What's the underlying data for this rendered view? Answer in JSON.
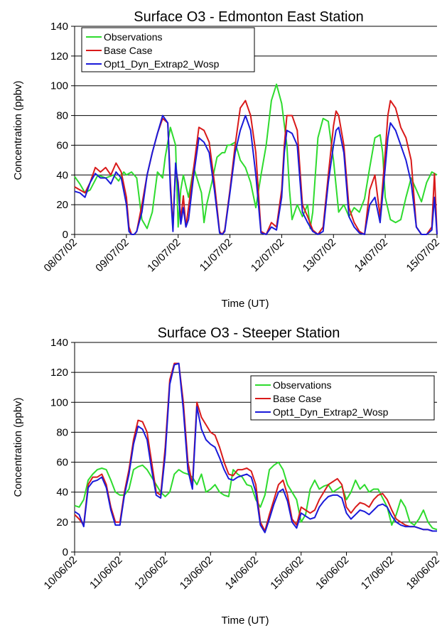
{
  "chart_data": [
    {
      "type": "line",
      "title": "Surface O3 - Edmonton East Station",
      "xlabel": "Time (UT)",
      "ylabel": "Concentration (ppbv)",
      "ylim": [
        0,
        140
      ],
      "yticks": [
        "0",
        "20",
        "40",
        "60",
        "80",
        "100",
        "120",
        "140"
      ],
      "xticks": [
        "08/07/02",
        "09/07/02",
        "10/07/02",
        "11/07/02",
        "12/07/02",
        "13/07/02",
        "14/07/02",
        "15/07/02"
      ],
      "xlim_days": [
        0,
        7
      ],
      "grid": "horizontal",
      "legend_position": "top-left",
      "colors": {
        "Observations": "#2edb2e",
        "Base Case": "#d91a1a",
        "Opt1_Dyn_Extrap2_Wosp": "#1a1ad9"
      },
      "series": [
        {
          "name": "Observations",
          "x": [
            0,
            0.1,
            0.2,
            0.3,
            0.45,
            0.6,
            0.75,
            0.85,
            0.95,
            1.0,
            1.1,
            1.2,
            1.3,
            1.4,
            1.5,
            1.6,
            1.7,
            1.75,
            1.85,
            1.95,
            2.0,
            2.05,
            2.1,
            2.2,
            2.3,
            2.45,
            2.5,
            2.55,
            2.65,
            2.75,
            2.85,
            2.9,
            2.95,
            3.0,
            3.1,
            3.2,
            3.3,
            3.4,
            3.5,
            3.6,
            3.7,
            3.8,
            3.9,
            4.0,
            4.1,
            4.15,
            4.2,
            4.3,
            4.4,
            4.5,
            4.55,
            4.6,
            4.7,
            4.8,
            4.9,
            5.0,
            5.1,
            5.2,
            5.3,
            5.4,
            5.5,
            5.6,
            5.7,
            5.8,
            5.9,
            5.95,
            6.0,
            6.1,
            6.2,
            6.3,
            6.4,
            6.5,
            6.6,
            6.7,
            6.8,
            6.9,
            7.0
          ],
          "values": [
            39,
            34,
            28,
            30,
            40,
            38,
            40,
            36,
            42,
            40,
            42,
            38,
            10,
            4,
            15,
            42,
            38,
            52,
            72,
            60,
            5,
            30,
            40,
            25,
            45,
            28,
            8,
            20,
            35,
            52,
            55,
            55,
            60,
            60,
            62,
            50,
            45,
            35,
            18,
            40,
            60,
            90,
            101,
            88,
            60,
            30,
            10,
            20,
            12,
            20,
            4,
            15,
            65,
            78,
            76,
            50,
            15,
            20,
            12,
            18,
            15,
            24,
            45,
            65,
            67,
            55,
            25,
            10,
            8,
            10,
            25,
            38,
            30,
            22,
            35,
            42,
            40
          ]
        },
        {
          "name": "Base Case",
          "x": [
            0,
            0.1,
            0.2,
            0.3,
            0.4,
            0.5,
            0.6,
            0.7,
            0.8,
            0.9,
            1.0,
            1.05,
            1.1,
            1.15,
            1.2,
            1.3,
            1.4,
            1.5,
            1.6,
            1.7,
            1.8,
            1.85,
            1.9,
            1.95,
            2.0,
            2.05,
            2.1,
            2.15,
            2.2,
            2.3,
            2.4,
            2.5,
            2.6,
            2.7,
            2.8,
            2.85,
            2.9,
            3.0,
            3.1,
            3.2,
            3.3,
            3.4,
            3.5,
            3.6,
            3.7,
            3.8,
            3.9,
            4.0,
            4.05,
            4.1,
            4.2,
            4.3,
            4.4,
            4.5,
            4.6,
            4.7,
            4.8,
            4.9,
            5.0,
            5.05,
            5.1,
            5.2,
            5.3,
            5.4,
            5.5,
            5.6,
            5.7,
            5.8,
            5.9,
            6.0,
            6.05,
            6.1,
            6.2,
            6.3,
            6.4,
            6.5,
            6.6,
            6.7,
            6.8,
            6.9,
            6.95,
            7.0
          ],
          "values": [
            32,
            30,
            28,
            35,
            45,
            42,
            45,
            40,
            48,
            42,
            25,
            5,
            0,
            0,
            2,
            20,
            40,
            55,
            68,
            78,
            75,
            35,
            5,
            45,
            35,
            10,
            26,
            5,
            18,
            45,
            72,
            70,
            62,
            35,
            2,
            0,
            3,
            30,
            60,
            85,
            90,
            80,
            55,
            2,
            0,
            8,
            5,
            30,
            60,
            80,
            80,
            70,
            20,
            12,
            3,
            0,
            5,
            40,
            73,
            83,
            80,
            60,
            18,
            8,
            2,
            0,
            30,
            40,
            12,
            55,
            80,
            90,
            85,
            72,
            65,
            50,
            5,
            0,
            0,
            5,
            41,
            0
          ]
        },
        {
          "name": "Opt1_Dyn_Extrap2_Wosp",
          "x": [
            0,
            0.1,
            0.2,
            0.3,
            0.4,
            0.5,
            0.6,
            0.7,
            0.8,
            0.9,
            1.0,
            1.05,
            1.1,
            1.15,
            1.2,
            1.3,
            1.4,
            1.5,
            1.6,
            1.7,
            1.8,
            1.85,
            1.9,
            1.95,
            2.0,
            2.05,
            2.1,
            2.15,
            2.2,
            2.3,
            2.4,
            2.5,
            2.6,
            2.7,
            2.8,
            2.85,
            2.9,
            3.0,
            3.1,
            3.2,
            3.3,
            3.4,
            3.5,
            3.6,
            3.7,
            3.8,
            3.9,
            4.0,
            4.05,
            4.1,
            4.2,
            4.3,
            4.4,
            4.5,
            4.6,
            4.7,
            4.8,
            4.9,
            5.0,
            5.05,
            5.1,
            5.2,
            5.3,
            5.4,
            5.5,
            5.6,
            5.7,
            5.8,
            5.9,
            6.0,
            6.05,
            6.1,
            6.2,
            6.3,
            6.4,
            6.5,
            6.6,
            6.7,
            6.8,
            6.9,
            6.95,
            7.0
          ],
          "values": [
            29,
            28,
            25,
            35,
            41,
            38,
            38,
            34,
            42,
            38,
            20,
            2,
            0,
            0,
            2,
            15,
            40,
            55,
            68,
            80,
            75,
            30,
            2,
            48,
            32,
            7,
            18,
            5,
            10,
            40,
            65,
            62,
            55,
            30,
            1,
            0,
            2,
            28,
            55,
            70,
            80,
            70,
            40,
            1,
            0,
            5,
            3,
            25,
            55,
            70,
            68,
            60,
            15,
            8,
            2,
            0,
            2,
            35,
            60,
            70,
            72,
            55,
            12,
            5,
            1,
            0,
            20,
            25,
            8,
            45,
            65,
            75,
            70,
            60,
            50,
            35,
            5,
            0,
            0,
            3,
            25,
            0
          ]
        }
      ]
    },
    {
      "type": "line",
      "title": "Surface O3 - Steeper Station",
      "xlabel": "Time (UT)",
      "ylabel": "Concentration (ppbv)",
      "ylim": [
        0,
        140
      ],
      "yticks": [
        "0",
        "20",
        "40",
        "60",
        "80",
        "100",
        "120",
        "140"
      ],
      "xticks": [
        "10/06/02",
        "11/06/02",
        "12/06/02",
        "13/06/02",
        "14/06/02",
        "15/06/02",
        "16/06/02",
        "17/06/02",
        "18/06/02"
      ],
      "xlim_days": [
        0,
        8
      ],
      "grid": "horizontal",
      "legend_position": "top-right",
      "colors": {
        "Observations": "#2edb2e",
        "Base Case": "#d91a1a",
        "Opt1_Dyn_Extrap2_Wosp": "#1a1ad9"
      },
      "series": [
        {
          "name": "Observations",
          "x": [
            0,
            0.1,
            0.2,
            0.3,
            0.4,
            0.5,
            0.6,
            0.7,
            0.8,
            0.9,
            1.0,
            1.1,
            1.2,
            1.3,
            1.4,
            1.5,
            1.6,
            1.7,
            1.8,
            1.9,
            2.0,
            2.1,
            2.2,
            2.3,
            2.4,
            2.5,
            2.6,
            2.7,
            2.8,
            2.9,
            3.0,
            3.1,
            3.2,
            3.3,
            3.4,
            3.5,
            3.6,
            3.7,
            3.8,
            3.9,
            4.0,
            4.1,
            4.2,
            4.3,
            4.4,
            4.5,
            4.6,
            4.7,
            4.8,
            4.9,
            5.0,
            5.1,
            5.2,
            5.3,
            5.4,
            5.5,
            5.6,
            5.7,
            5.8,
            5.9,
            6.0,
            6.1,
            6.2,
            6.3,
            6.4,
            6.5,
            6.6,
            6.7,
            6.8,
            6.9,
            7.0,
            7.1,
            7.2,
            7.3,
            7.4,
            7.5,
            7.6,
            7.7,
            7.8,
            7.9,
            8.0
          ],
          "values": [
            31,
            30,
            35,
            48,
            52,
            55,
            56,
            55,
            48,
            40,
            38,
            38,
            42,
            55,
            57,
            58,
            55,
            50,
            45,
            40,
            37,
            40,
            52,
            55,
            53,
            52,
            50,
            45,
            52,
            40,
            42,
            45,
            40,
            38,
            37,
            55,
            52,
            50,
            45,
            44,
            35,
            30,
            38,
            55,
            58,
            60,
            55,
            45,
            40,
            35,
            20,
            25,
            42,
            48,
            42,
            44,
            45,
            40,
            42,
            44,
            35,
            40,
            48,
            42,
            45,
            40,
            42,
            42,
            36,
            30,
            18,
            25,
            35,
            30,
            20,
            18,
            22,
            28,
            20,
            16,
            15
          ]
        },
        {
          "name": "Base Case",
          "x": [
            0,
            0.1,
            0.2,
            0.3,
            0.4,
            0.5,
            0.6,
            0.7,
            0.8,
            0.9,
            1.0,
            1.1,
            1.2,
            1.3,
            1.4,
            1.5,
            1.6,
            1.7,
            1.8,
            1.9,
            2.0,
            2.1,
            2.2,
            2.3,
            2.4,
            2.5,
            2.6,
            2.7,
            2.8,
            2.9,
            3.0,
            3.1,
            3.2,
            3.3,
            3.4,
            3.5,
            3.6,
            3.7,
            3.8,
            3.9,
            4.0,
            4.1,
            4.2,
            4.3,
            4.4,
            4.5,
            4.6,
            4.7,
            4.8,
            4.9,
            5.0,
            5.1,
            5.2,
            5.3,
            5.4,
            5.5,
            5.6,
            5.7,
            5.8,
            5.9,
            6.0,
            6.1,
            6.2,
            6.3,
            6.4,
            6.5,
            6.6,
            6.7,
            6.8,
            6.9,
            7.0,
            7.1,
            7.2,
            7.3,
            7.4,
            7.5,
            7.6,
            7.7,
            7.8,
            7.9,
            8.0
          ],
          "values": [
            25,
            22,
            18,
            45,
            50,
            50,
            52,
            45,
            30,
            20,
            20,
            40,
            55,
            75,
            88,
            87,
            80,
            60,
            40,
            38,
            70,
            115,
            126,
            126,
            100,
            60,
            45,
            100,
            90,
            85,
            80,
            78,
            70,
            60,
            52,
            51,
            55,
            55,
            56,
            54,
            45,
            20,
            14,
            25,
            35,
            45,
            48,
            38,
            22,
            18,
            30,
            28,
            26,
            28,
            35,
            40,
            45,
            47,
            49,
            45,
            30,
            26,
            30,
            33,
            32,
            30,
            35,
            38,
            39,
            35,
            28,
            22,
            20,
            18,
            17,
            17,
            16,
            15,
            15,
            14,
            14
          ]
        },
        {
          "name": "Opt1_Dyn_Extrap2_Wosp",
          "x": [
            0,
            0.1,
            0.2,
            0.3,
            0.4,
            0.5,
            0.6,
            0.7,
            0.8,
            0.9,
            1.0,
            1.1,
            1.2,
            1.3,
            1.4,
            1.5,
            1.6,
            1.7,
            1.8,
            1.9,
            2.0,
            2.1,
            2.2,
            2.3,
            2.4,
            2.5,
            2.6,
            2.7,
            2.8,
            2.9,
            3.0,
            3.1,
            3.2,
            3.3,
            3.4,
            3.5,
            3.6,
            3.7,
            3.8,
            3.9,
            4.0,
            4.1,
            4.2,
            4.3,
            4.4,
            4.5,
            4.6,
            4.7,
            4.8,
            4.9,
            5.0,
            5.1,
            5.2,
            5.3,
            5.4,
            5.5,
            5.6,
            5.7,
            5.8,
            5.9,
            6.0,
            6.1,
            6.2,
            6.3,
            6.4,
            6.5,
            6.6,
            6.7,
            6.8,
            6.9,
            7.0,
            7.1,
            7.2,
            7.3,
            7.4,
            7.5,
            7.6,
            7.7,
            7.8,
            7.9,
            8.0
          ],
          "values": [
            27,
            25,
            17,
            43,
            47,
            48,
            50,
            43,
            28,
            18,
            18,
            38,
            52,
            72,
            84,
            82,
            75,
            55,
            38,
            36,
            65,
            112,
            125,
            126,
            95,
            55,
            42,
            97,
            82,
            75,
            72,
            70,
            63,
            55,
            49,
            48,
            50,
            51,
            52,
            50,
            40,
            18,
            13,
            22,
            32,
            40,
            42,
            34,
            20,
            16,
            26,
            24,
            22,
            23,
            30,
            34,
            37,
            38,
            38,
            36,
            26,
            22,
            25,
            28,
            27,
            25,
            28,
            31,
            32,
            30,
            24,
            20,
            18,
            17,
            17,
            17,
            16,
            15,
            15,
            14,
            14
          ]
        }
      ]
    }
  ]
}
